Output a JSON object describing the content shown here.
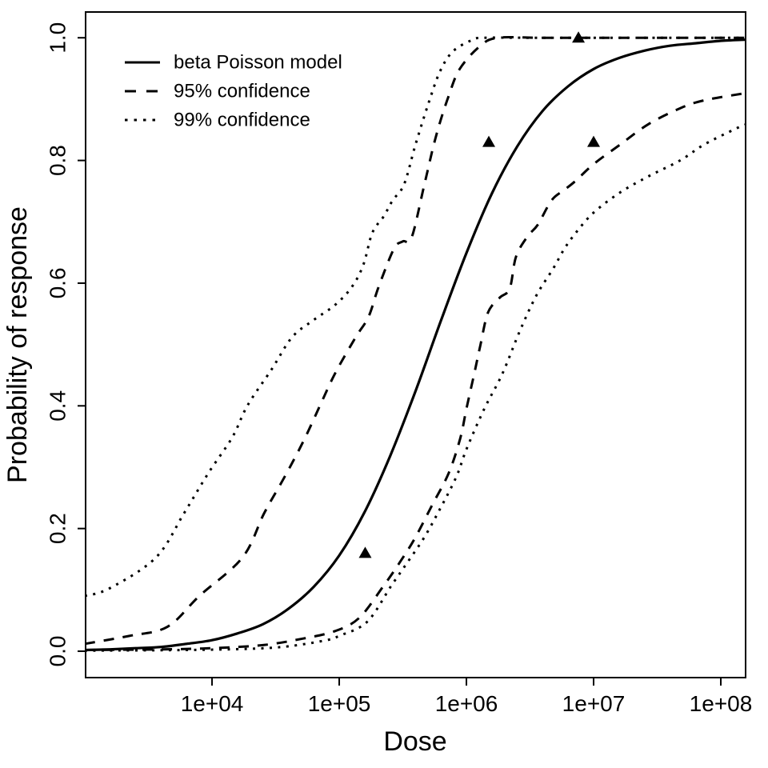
{
  "chart_data": {
    "type": "line",
    "title": "",
    "xlabel": "Dose",
    "ylabel": "Probability of response",
    "x_scale": "log10",
    "xlim_log10": [
      3.006,
      8.195
    ],
    "ylim": [
      -0.043,
      1.042
    ],
    "grid": false,
    "axis_color": "#000000",
    "background_color": "#ffffff",
    "x_ticks": {
      "values": [
        10000,
        100000,
        1000000,
        10000000,
        100000000
      ],
      "labels": [
        "1e+04",
        "1e+05",
        "1e+06",
        "1e+07",
        "1e+08"
      ]
    },
    "y_ticks": {
      "values": [
        0.0,
        0.2,
        0.4,
        0.6,
        0.8,
        1.0
      ],
      "labels": [
        "0.0",
        "0.2",
        "0.4",
        "0.6",
        "0.8",
        "1.0"
      ]
    },
    "legend": {
      "position": "topleft",
      "entries": [
        {
          "label": "beta Poisson model",
          "style": "solid"
        },
        {
          "label": "95% confidence",
          "style": "dashed"
        },
        {
          "label": "99% confidence",
          "style": "dotted"
        }
      ]
    },
    "series": [
      {
        "name": "beta Poisson model",
        "style": "solid",
        "points_log10dose_prob": [
          [
            3.0,
            0.002
          ],
          [
            3.2,
            0.003
          ],
          [
            3.4,
            0.005
          ],
          [
            3.6,
            0.007
          ],
          [
            3.8,
            0.012
          ],
          [
            4.0,
            0.018
          ],
          [
            4.2,
            0.029
          ],
          [
            4.4,
            0.044
          ],
          [
            4.6,
            0.069
          ],
          [
            4.8,
            0.105
          ],
          [
            5.0,
            0.156
          ],
          [
            5.2,
            0.227
          ],
          [
            5.4,
            0.318
          ],
          [
            5.6,
            0.424
          ],
          [
            5.8,
            0.539
          ],
          [
            6.0,
            0.649
          ],
          [
            6.2,
            0.746
          ],
          [
            6.4,
            0.823
          ],
          [
            6.6,
            0.881
          ],
          [
            6.8,
            0.921
          ],
          [
            7.0,
            0.949
          ],
          [
            7.2,
            0.967
          ],
          [
            7.4,
            0.979
          ],
          [
            7.6,
            0.987
          ],
          [
            7.8,
            0.991
          ],
          [
            8.0,
            0.995
          ],
          [
            8.2,
            0.997
          ]
        ]
      },
      {
        "name": "95% confidence upper",
        "style": "dashed",
        "points_log10dose_prob": [
          [
            3.0,
            0.012
          ],
          [
            3.35,
            0.025
          ],
          [
            3.65,
            0.04
          ],
          [
            3.9,
            0.09
          ],
          [
            4.24,
            0.153
          ],
          [
            4.41,
            0.225
          ],
          [
            4.57,
            0.284
          ],
          [
            4.72,
            0.343
          ],
          [
            4.85,
            0.401
          ],
          [
            4.97,
            0.454
          ],
          [
            5.13,
            0.512
          ],
          [
            5.23,
            0.545
          ],
          [
            5.31,
            0.594
          ],
          [
            5.43,
            0.656
          ],
          [
            5.5,
            0.668
          ],
          [
            5.57,
            0.675
          ],
          [
            5.67,
            0.761
          ],
          [
            5.76,
            0.839
          ],
          [
            5.86,
            0.905
          ],
          [
            5.95,
            0.95
          ],
          [
            6.11,
            0.987
          ],
          [
            6.25,
            1.0
          ],
          [
            6.6,
            1.0
          ],
          [
            7.2,
            1.0
          ],
          [
            7.8,
            1.0
          ],
          [
            8.2,
            1.0
          ]
        ]
      },
      {
        "name": "95% confidence lower",
        "style": "dashed",
        "points_log10dose_prob": [
          [
            3.0,
            0.002
          ],
          [
            3.6,
            0.003
          ],
          [
            4.0,
            0.005
          ],
          [
            4.4,
            0.01
          ],
          [
            4.7,
            0.02
          ],
          [
            4.97,
            0.033
          ],
          [
            5.16,
            0.055
          ],
          [
            5.35,
            0.107
          ],
          [
            5.48,
            0.146
          ],
          [
            5.6,
            0.186
          ],
          [
            5.73,
            0.238
          ],
          [
            5.86,
            0.29
          ],
          [
            5.95,
            0.346
          ],
          [
            6.0,
            0.395
          ],
          [
            6.06,
            0.451
          ],
          [
            6.11,
            0.499
          ],
          [
            6.17,
            0.552
          ],
          [
            6.26,
            0.576
          ],
          [
            6.34,
            0.591
          ],
          [
            6.39,
            0.643
          ],
          [
            6.48,
            0.676
          ],
          [
            6.56,
            0.695
          ],
          [
            6.67,
            0.735
          ],
          [
            6.77,
            0.752
          ],
          [
            6.86,
            0.767
          ],
          [
            7.0,
            0.794
          ],
          [
            7.21,
            0.826
          ],
          [
            7.43,
            0.859
          ],
          [
            7.68,
            0.885
          ],
          [
            7.87,
            0.898
          ],
          [
            8.2,
            0.91
          ]
        ]
      },
      {
        "name": "99% confidence upper",
        "style": "dotted",
        "points_log10dose_prob": [
          [
            3.0,
            0.09
          ],
          [
            3.2,
            0.103
          ],
          [
            3.56,
            0.153
          ],
          [
            3.78,
            0.225
          ],
          [
            3.97,
            0.29
          ],
          [
            4.16,
            0.349
          ],
          [
            4.28,
            0.401
          ],
          [
            4.47,
            0.46
          ],
          [
            4.63,
            0.512
          ],
          [
            4.8,
            0.54
          ],
          [
            4.97,
            0.565
          ],
          [
            5.1,
            0.594
          ],
          [
            5.19,
            0.63
          ],
          [
            5.26,
            0.682
          ],
          [
            5.35,
            0.709
          ],
          [
            5.42,
            0.735
          ],
          [
            5.51,
            0.761
          ],
          [
            5.6,
            0.826
          ],
          [
            5.7,
            0.892
          ],
          [
            5.79,
            0.944
          ],
          [
            5.89,
            0.977
          ],
          [
            6.04,
            0.996
          ],
          [
            6.14,
            1.0
          ],
          [
            6.5,
            1.0
          ],
          [
            7.0,
            1.0
          ],
          [
            7.6,
            1.0
          ],
          [
            8.2,
            1.0
          ]
        ]
      },
      {
        "name": "99% confidence lower",
        "style": "dotted",
        "points_log10dose_prob": [
          [
            3.0,
            0.001
          ],
          [
            3.8,
            0.002
          ],
          [
            4.3,
            0.004
          ],
          [
            4.6,
            0.008
          ],
          [
            4.9,
            0.018
          ],
          [
            5.0,
            0.025
          ],
          [
            5.22,
            0.048
          ],
          [
            5.41,
            0.107
          ],
          [
            5.54,
            0.146
          ],
          [
            5.67,
            0.186
          ],
          [
            5.79,
            0.231
          ],
          [
            5.92,
            0.284
          ],
          [
            6.0,
            0.329
          ],
          [
            6.14,
            0.395
          ],
          [
            6.28,
            0.451
          ],
          [
            6.42,
            0.522
          ],
          [
            6.55,
            0.58
          ],
          [
            6.68,
            0.623
          ],
          [
            6.77,
            0.656
          ],
          [
            6.86,
            0.682
          ],
          [
            7.0,
            0.715
          ],
          [
            7.21,
            0.748
          ],
          [
            7.43,
            0.774
          ],
          [
            7.68,
            0.8
          ],
          [
            7.87,
            0.826
          ],
          [
            8.12,
            0.852
          ],
          [
            8.2,
            0.859
          ]
        ]
      }
    ],
    "observed_points": {
      "marker": "filled-triangle",
      "color": "#000000",
      "data_dose_prob": [
        [
          160000,
          0.16
        ],
        [
          1500000,
          0.83
        ],
        [
          7600000,
          1.0
        ],
        [
          10000000,
          0.83
        ]
      ]
    }
  }
}
